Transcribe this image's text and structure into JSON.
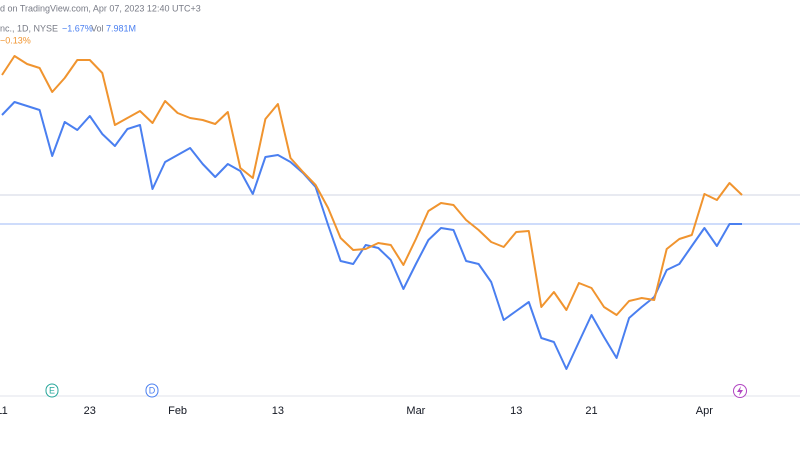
{
  "header": {
    "source": "d on TradingView.com, Apr 07, 2023 12:40 UTC+3",
    "symbol": "nc., 1D, NYSE",
    "change": "−1.67%",
    "volume_label": "Vol",
    "volume": "7.981M",
    "change2": "−0.13%"
  },
  "events": [
    "E",
    "D"
  ],
  "chart_data": {
    "type": "line",
    "categories": [
      "11",
      null,
      null,
      null,
      null,
      null,
      null,
      "23",
      null,
      null,
      null,
      null,
      null,
      null,
      "Feb",
      null,
      null,
      null,
      null,
      null,
      null,
      null,
      "13",
      null,
      null,
      null,
      null,
      null,
      null,
      null,
      null,
      null,
      null,
      "Mar",
      null,
      null,
      null,
      null,
      null,
      null,
      null,
      "13",
      null,
      null,
      null,
      null,
      null,
      "21",
      null,
      null,
      null,
      null,
      null,
      null,
      null,
      null,
      "Apr",
      null,
      null,
      null
    ],
    "series": [
      {
        "name": "−1.67%",
        "color": "#4a7ff0",
        "values": [
          285,
          298,
          294,
          290,
          244,
          278,
          270,
          284,
          266,
          254,
          271,
          275,
          211,
          238,
          245,
          252,
          236,
          223,
          236,
          229,
          206,
          243,
          245,
          238,
          227,
          213,
          175,
          139,
          136,
          155,
          152,
          140,
          111,
          136,
          160,
          172,
          170,
          139,
          136,
          118,
          80,
          89,
          98,
          62,
          58,
          31,
          58,
          85,
          63,
          42,
          82,
          93,
          103,
          130,
          136,
          154,
          172,
          154,
          176,
          176
        ]
      },
      {
        "name": "−0.13%",
        "color": "#f0942f",
        "values": [
          325,
          344,
          336,
          332,
          308,
          322,
          340,
          340,
          327,
          275,
          282,
          289,
          277,
          299,
          287,
          282,
          280,
          276,
          288,
          232,
          222,
          281,
          296,
          242,
          228,
          215,
          192,
          162,
          150,
          151,
          157,
          155,
          135,
          161,
          189,
          197,
          195,
          180,
          170,
          158,
          153,
          168,
          169,
          93,
          108,
          90,
          117,
          112,
          93,
          85,
          99,
          102,
          100,
          151,
          161,
          165,
          206,
          200,
          217,
          205
        ]
      }
    ],
    "ylim": [
      0,
      400
    ]
  }
}
